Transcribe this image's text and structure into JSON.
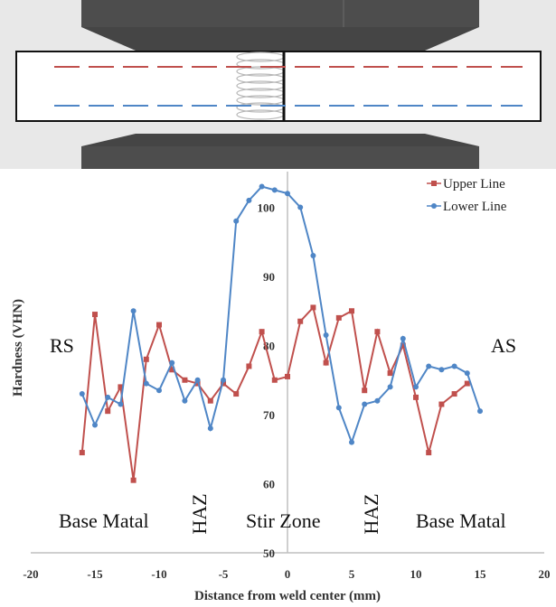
{
  "colors": {
    "upper": "#c0504d",
    "lower": "#4f86c6",
    "tool": "#4d4d4d",
    "tool_dark": "#2f2f2f",
    "plate_bg": "#e6e6e6",
    "axis": "#bfbfbf"
  },
  "chart_data": {
    "type": "line",
    "title": "",
    "xlabel": "Distance from weld center (mm)",
    "ylabel": "Hardness (VHN)",
    "xlim": [
      -20,
      20
    ],
    "ylim": [
      50,
      105
    ],
    "xticks": [
      -20,
      -15,
      -10,
      -5,
      0,
      5,
      10,
      15,
      20
    ],
    "yticks": [
      50,
      60,
      70,
      80,
      90,
      100
    ],
    "legend_position": "top-right",
    "series": [
      {
        "name": "Upper Line",
        "x": [
          -16,
          -15,
          -14,
          -13,
          -12,
          -11,
          -10,
          -9,
          -8,
          -7,
          -6,
          -5,
          -4,
          -3,
          -2,
          -1,
          0,
          1,
          2,
          3,
          4,
          5,
          6,
          7,
          8,
          9,
          10,
          11,
          12,
          13,
          14
        ],
        "y": [
          64.5,
          84.5,
          70.5,
          74,
          60.5,
          78,
          83,
          76.5,
          75,
          74.5,
          72,
          74.5,
          73,
          77,
          82,
          75,
          75.5,
          83.5,
          85.5,
          77.5,
          84,
          85,
          73.5,
          82,
          76,
          80,
          72.5,
          64.5,
          71.5,
          73,
          74.5
        ]
      },
      {
        "name": "Lower Line",
        "x": [
          -16,
          -15,
          -14,
          -13,
          -12,
          -11,
          -10,
          -9,
          -8,
          -7,
          -6,
          -5,
          -4,
          -3,
          -2,
          -1,
          0,
          1,
          2,
          3,
          4,
          5,
          6,
          7,
          8,
          9,
          10,
          11,
          12,
          13,
          14,
          15
        ],
        "y": [
          73,
          68.5,
          72.5,
          71.5,
          85,
          74.5,
          73.5,
          77.5,
          72,
          75,
          68,
          75,
          98,
          101,
          103,
          102.5,
          102,
          100,
          93,
          81.5,
          71,
          66,
          71.5,
          72,
          74,
          81,
          74,
          77,
          76.5,
          77,
          76,
          70.5
        ]
      }
    ],
    "annotations": {
      "left_side": "RS",
      "right_side": "AS",
      "regions": [
        "Base Matal",
        "HAZ",
        "Stir Zone",
        "HAZ",
        "Base Matal"
      ]
    }
  }
}
